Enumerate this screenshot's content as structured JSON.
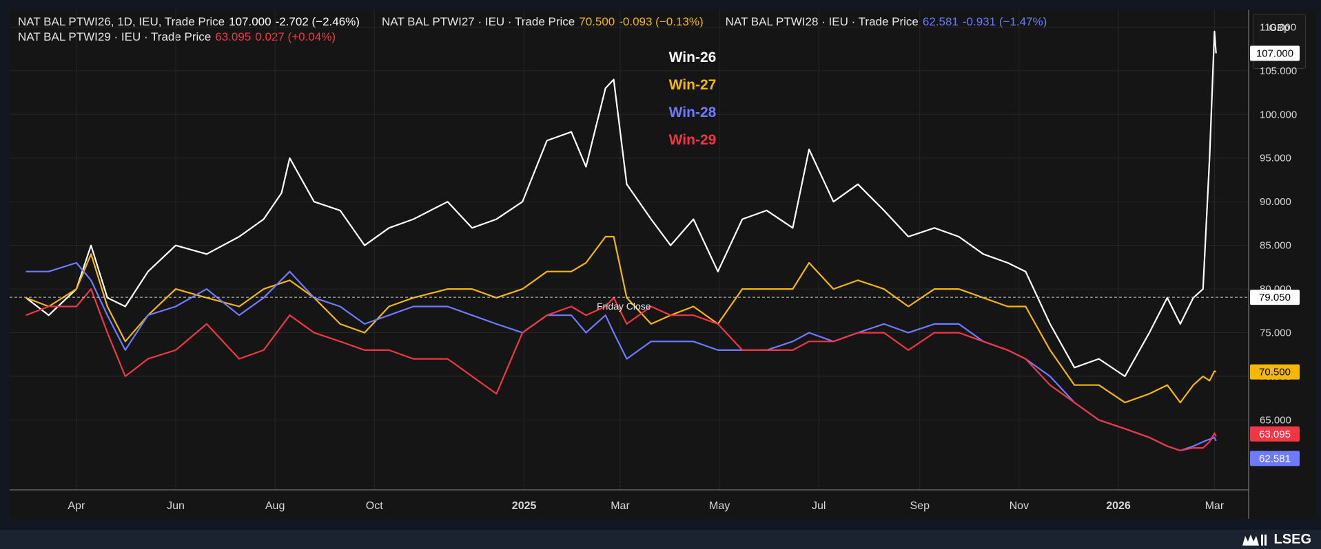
{
  "header": {
    "rows": [
      [
        {
          "name": "NAT BAL PTWI26, 1D, IEU, Trade Price",
          "price": "107.000",
          "change": "-2.702 (−2.46%)",
          "color": "#ffffff"
        },
        {
          "name": "NAT BAL PTWI27 · IEU · Trade Price",
          "price": "70.500",
          "change": "-0.093 (−0.13%)",
          "color": "#f5b800"
        },
        {
          "name": "NAT BAL PTWI28 · IEU · Trade Price",
          "price": "62.581",
          "change": "-0.931 (−1.47%)",
          "color": "#6f7bff"
        }
      ],
      [
        {
          "name": "NAT BAL PTWI29 · IEU · Trade Price",
          "price": "63.095",
          "change": "0.027 (+0.04%)",
          "color": "#f23645"
        }
      ]
    ]
  },
  "unit_selector": {
    "currency": "GBp",
    "unit": "thm"
  },
  "branding": {
    "logo_text": "LSEG"
  },
  "chart_data": {
    "type": "line",
    "legend_placement": "top-center",
    "ylim": [
      57,
      112
    ],
    "y_ticks": [
      "65.000",
      "70.000",
      "75.000",
      "80.000",
      "85.000",
      "90.000",
      "95.000",
      "100.000",
      "105.000",
      "110.000"
    ],
    "x_ticks": [
      "Apr",
      "Jun",
      "Aug",
      "Oct",
      "2025",
      "Mar",
      "May",
      "Jul",
      "Sep",
      "Nov",
      "2026",
      "Mar"
    ],
    "reference_line": {
      "value": 79.05,
      "label": "79.050",
      "annotation": "Friday Close"
    },
    "series": [
      {
        "name": "Win-26",
        "color": "#ffffff",
        "last_label": "107.000",
        "points": [
          [
            "2024-03-01",
            79
          ],
          [
            "2024-03-15",
            77
          ],
          [
            "2024-04-01",
            80
          ],
          [
            "2024-04-10",
            85
          ],
          [
            "2024-04-20",
            79
          ],
          [
            "2024-05-01",
            78
          ],
          [
            "2024-05-15",
            82
          ],
          [
            "2024-06-01",
            85
          ],
          [
            "2024-06-20",
            84
          ],
          [
            "2024-07-10",
            86
          ],
          [
            "2024-07-25",
            88
          ],
          [
            "2024-08-05",
            91
          ],
          [
            "2024-08-10",
            95
          ],
          [
            "2024-08-25",
            90
          ],
          [
            "2024-09-10",
            89
          ],
          [
            "2024-09-25",
            85
          ],
          [
            "2024-10-10",
            87
          ],
          [
            "2024-10-25",
            88
          ],
          [
            "2024-11-15",
            90
          ],
          [
            "2024-11-30",
            87
          ],
          [
            "2024-12-15",
            88
          ],
          [
            "2024-12-31",
            90
          ],
          [
            "2025-01-15",
            97
          ],
          [
            "2025-01-30",
            98
          ],
          [
            "2025-02-08",
            94
          ],
          [
            "2025-02-20",
            103
          ],
          [
            "2025-02-25",
            104
          ],
          [
            "2025-03-05",
            92
          ],
          [
            "2025-03-20",
            88
          ],
          [
            "2025-04-01",
            85
          ],
          [
            "2025-04-15",
            88
          ],
          [
            "2025-04-30",
            82
          ],
          [
            "2025-05-15",
            88
          ],
          [
            "2025-05-30",
            89
          ],
          [
            "2025-06-15",
            87
          ],
          [
            "2025-06-25",
            96
          ],
          [
            "2025-07-10",
            90
          ],
          [
            "2025-07-25",
            92
          ],
          [
            "2025-08-10",
            89
          ],
          [
            "2025-08-25",
            86
          ],
          [
            "2025-09-10",
            87
          ],
          [
            "2025-09-25",
            86
          ],
          [
            "2025-10-10",
            84
          ],
          [
            "2025-10-25",
            83
          ],
          [
            "2025-11-05",
            82
          ],
          [
            "2025-11-20",
            76
          ],
          [
            "2025-12-05",
            71
          ],
          [
            "2025-12-20",
            72
          ],
          [
            "2026-01-05",
            70
          ],
          [
            "2026-01-20",
            75
          ],
          [
            "2026-01-31",
            79
          ],
          [
            "2026-02-08",
            76
          ],
          [
            "2026-02-16",
            79
          ],
          [
            "2026-02-22",
            80
          ],
          [
            "2026-02-26",
            95
          ],
          [
            "2026-03-01",
            109.5
          ],
          [
            "2026-03-02",
            107
          ]
        ]
      },
      {
        "name": "Win-27",
        "color": "#f5b800",
        "last_label": "70.500",
        "points": [
          [
            "2024-03-01",
            79
          ],
          [
            "2024-03-15",
            78
          ],
          [
            "2024-04-01",
            80
          ],
          [
            "2024-04-10",
            84
          ],
          [
            "2024-04-20",
            78
          ],
          [
            "2024-05-01",
            74
          ],
          [
            "2024-05-15",
            77
          ],
          [
            "2024-06-01",
            80
          ],
          [
            "2024-06-20",
            79
          ],
          [
            "2024-07-10",
            78
          ],
          [
            "2024-07-25",
            80
          ],
          [
            "2024-08-10",
            81
          ],
          [
            "2024-08-25",
            79
          ],
          [
            "2024-09-10",
            76
          ],
          [
            "2024-09-25",
            75
          ],
          [
            "2024-10-10",
            78
          ],
          [
            "2024-10-25",
            79
          ],
          [
            "2024-11-15",
            80
          ],
          [
            "2024-11-30",
            80
          ],
          [
            "2024-12-15",
            79
          ],
          [
            "2024-12-31",
            80
          ],
          [
            "2025-01-15",
            82
          ],
          [
            "2025-01-30",
            82
          ],
          [
            "2025-02-08",
            83
          ],
          [
            "2025-02-20",
            86
          ],
          [
            "2025-02-25",
            86
          ],
          [
            "2025-03-05",
            79
          ],
          [
            "2025-03-20",
            76
          ],
          [
            "2025-04-01",
            77
          ],
          [
            "2025-04-15",
            78
          ],
          [
            "2025-04-30",
            76
          ],
          [
            "2025-05-15",
            80
          ],
          [
            "2025-05-30",
            80
          ],
          [
            "2025-06-15",
            80
          ],
          [
            "2025-06-25",
            83
          ],
          [
            "2025-07-10",
            80
          ],
          [
            "2025-07-25",
            81
          ],
          [
            "2025-08-10",
            80
          ],
          [
            "2025-08-25",
            78
          ],
          [
            "2025-09-10",
            80
          ],
          [
            "2025-09-25",
            80
          ],
          [
            "2025-10-10",
            79
          ],
          [
            "2025-10-25",
            78
          ],
          [
            "2025-11-05",
            78
          ],
          [
            "2025-11-20",
            73
          ],
          [
            "2025-12-05",
            69
          ],
          [
            "2025-12-20",
            69
          ],
          [
            "2026-01-05",
            67
          ],
          [
            "2026-01-20",
            68
          ],
          [
            "2026-01-31",
            69
          ],
          [
            "2026-02-08",
            67
          ],
          [
            "2026-02-16",
            69
          ],
          [
            "2026-02-22",
            70
          ],
          [
            "2026-02-26",
            69.5
          ],
          [
            "2026-03-01",
            70.6
          ],
          [
            "2026-03-02",
            70.5
          ]
        ]
      },
      {
        "name": "Win-28",
        "color": "#6f7bff",
        "last_label": "62.581",
        "points": [
          [
            "2024-03-01",
            82
          ],
          [
            "2024-03-15",
            82
          ],
          [
            "2024-04-01",
            83
          ],
          [
            "2024-04-10",
            81
          ],
          [
            "2024-04-20",
            77
          ],
          [
            "2024-05-01",
            73
          ],
          [
            "2024-05-15",
            77
          ],
          [
            "2024-06-01",
            78
          ],
          [
            "2024-06-20",
            80
          ],
          [
            "2024-07-10",
            77
          ],
          [
            "2024-07-25",
            79
          ],
          [
            "2024-08-10",
            82
          ],
          [
            "2024-08-25",
            79
          ],
          [
            "2024-09-10",
            78
          ],
          [
            "2024-09-25",
            76
          ],
          [
            "2024-10-10",
            77
          ],
          [
            "2024-10-25",
            78
          ],
          [
            "2024-11-15",
            78
          ],
          [
            "2024-11-30",
            77
          ],
          [
            "2024-12-15",
            76
          ],
          [
            "2024-12-31",
            75
          ],
          [
            "2025-01-15",
            77
          ],
          [
            "2025-01-30",
            77
          ],
          [
            "2025-02-08",
            75
          ],
          [
            "2025-02-20",
            77
          ],
          [
            "2025-02-25",
            75
          ],
          [
            "2025-03-05",
            72
          ],
          [
            "2025-03-20",
            74
          ],
          [
            "2025-04-01",
            74
          ],
          [
            "2025-04-15",
            74
          ],
          [
            "2025-04-30",
            73
          ],
          [
            "2025-05-15",
            73
          ],
          [
            "2025-05-30",
            73
          ],
          [
            "2025-06-15",
            74
          ],
          [
            "2025-06-25",
            75
          ],
          [
            "2025-07-10",
            74
          ],
          [
            "2025-07-25",
            75
          ],
          [
            "2025-08-10",
            76
          ],
          [
            "2025-08-25",
            75
          ],
          [
            "2025-09-10",
            76
          ],
          [
            "2025-09-25",
            76
          ],
          [
            "2025-10-10",
            74
          ],
          [
            "2025-10-25",
            73
          ],
          [
            "2025-11-05",
            72
          ],
          [
            "2025-11-20",
            70
          ],
          [
            "2025-12-05",
            67
          ],
          [
            "2025-12-20",
            65
          ],
          [
            "2026-01-05",
            64
          ],
          [
            "2026-01-20",
            63
          ],
          [
            "2026-01-31",
            62
          ],
          [
            "2026-02-08",
            61.5
          ],
          [
            "2026-02-16",
            62
          ],
          [
            "2026-02-22",
            62.5
          ],
          [
            "2026-02-26",
            62.8
          ],
          [
            "2026-03-01",
            63
          ],
          [
            "2026-03-02",
            62.6
          ]
        ]
      },
      {
        "name": "Win-29",
        "color": "#f23645",
        "last_label": "63.095",
        "points": [
          [
            "2024-03-01",
            77
          ],
          [
            "2024-03-15",
            78
          ],
          [
            "2024-04-01",
            78
          ],
          [
            "2024-04-10",
            80
          ],
          [
            "2024-04-20",
            75
          ],
          [
            "2024-05-01",
            70
          ],
          [
            "2024-05-15",
            72
          ],
          [
            "2024-06-01",
            73
          ],
          [
            "2024-06-20",
            76
          ],
          [
            "2024-07-10",
            72
          ],
          [
            "2024-07-25",
            73
          ],
          [
            "2024-08-10",
            77
          ],
          [
            "2024-08-25",
            75
          ],
          [
            "2024-09-10",
            74
          ],
          [
            "2024-09-25",
            73
          ],
          [
            "2024-10-10",
            73
          ],
          [
            "2024-10-25",
            72
          ],
          [
            "2024-11-15",
            72
          ],
          [
            "2024-11-30",
            70
          ],
          [
            "2024-12-15",
            68
          ],
          [
            "2024-12-31",
            75
          ],
          [
            "2025-01-15",
            77
          ],
          [
            "2025-01-30",
            78
          ],
          [
            "2025-02-08",
            77
          ],
          [
            "2025-02-20",
            78
          ],
          [
            "2025-02-25",
            79
          ],
          [
            "2025-03-05",
            76
          ],
          [
            "2025-03-20",
            78
          ],
          [
            "2025-04-01",
            77
          ],
          [
            "2025-04-15",
            77
          ],
          [
            "2025-04-30",
            76
          ],
          [
            "2025-05-15",
            73
          ],
          [
            "2025-05-30",
            73
          ],
          [
            "2025-06-15",
            73
          ],
          [
            "2025-06-25",
            74
          ],
          [
            "2025-07-10",
            74
          ],
          [
            "2025-07-25",
            75
          ],
          [
            "2025-08-10",
            75
          ],
          [
            "2025-08-25",
            73
          ],
          [
            "2025-09-10",
            75
          ],
          [
            "2025-09-25",
            75
          ],
          [
            "2025-10-10",
            74
          ],
          [
            "2025-10-25",
            73
          ],
          [
            "2025-11-05",
            72
          ],
          [
            "2025-11-20",
            69
          ],
          [
            "2025-12-05",
            67
          ],
          [
            "2025-12-20",
            65
          ],
          [
            "2026-01-05",
            64
          ],
          [
            "2026-01-20",
            63
          ],
          [
            "2026-01-31",
            62
          ],
          [
            "2026-02-08",
            61.5
          ],
          [
            "2026-02-16",
            61.8
          ],
          [
            "2026-02-22",
            61.8
          ],
          [
            "2026-02-26",
            62.5
          ],
          [
            "2026-03-01",
            63.5
          ],
          [
            "2026-03-02",
            63.1
          ]
        ]
      }
    ]
  }
}
